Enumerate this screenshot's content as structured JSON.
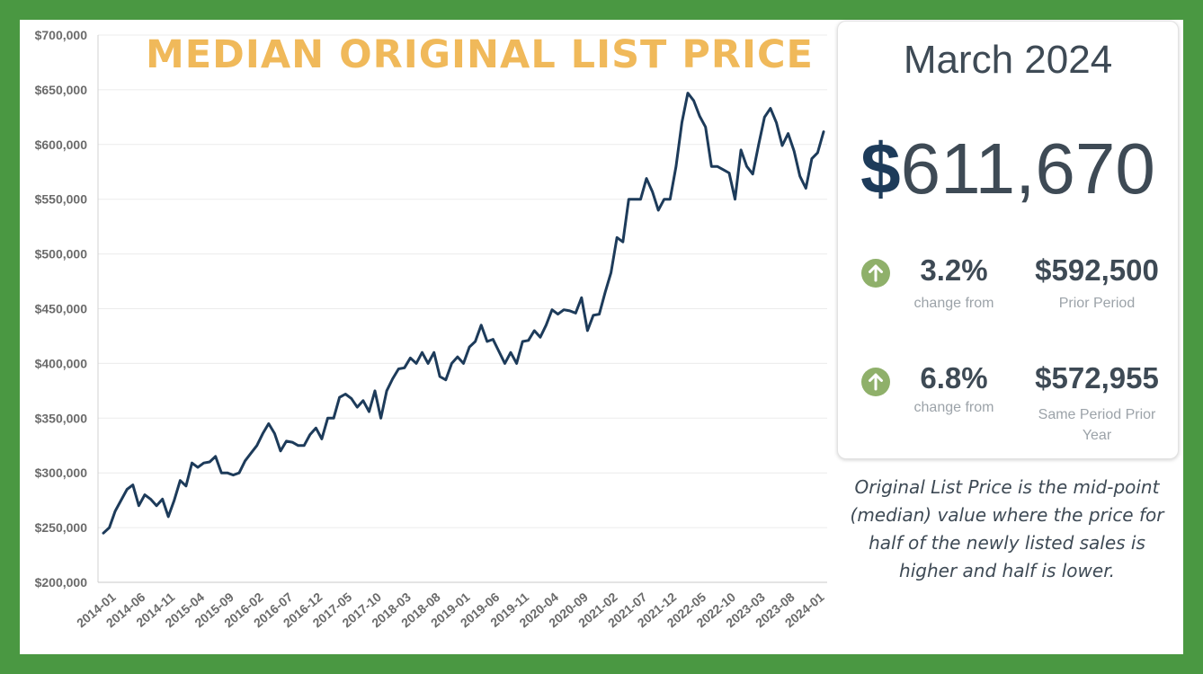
{
  "chart_data": {
    "type": "line",
    "title": "MEDIAN ORIGINAL LIST PRICE",
    "ylim": [
      200000,
      700000
    ],
    "y_ticks": [
      700000,
      650000,
      600000,
      550000,
      500000,
      450000,
      400000,
      350000,
      300000,
      250000,
      200000
    ],
    "y_tick_labels": [
      "$700,000",
      "$650,000",
      "$600,000",
      "$550,000",
      "$500,000",
      "$450,000",
      "$400,000",
      "$350,000",
      "$300,000",
      "$250,000",
      "$200,000"
    ],
    "x_start": "2014-01",
    "x_end": "2024-03",
    "x_tick_labels": [
      "2014-01",
      "2014-06",
      "2014-11",
      "2015-04",
      "2015-09",
      "2016-02",
      "2016-07",
      "2016-12",
      "2017-05",
      "2017-10",
      "2018-03",
      "2018-08",
      "2019-01",
      "2019-06",
      "2019-11",
      "2020-04",
      "2020-09",
      "2021-02",
      "2021-07",
      "2021-12",
      "2022-05",
      "2022-10",
      "2023-03",
      "2023-08",
      "2024-01"
    ],
    "grid": "horizontal",
    "line_color": "#1d3b5a",
    "series": [
      {
        "values": [
          245000,
          250000,
          265000,
          275000,
          285000,
          289000,
          270000,
          280000,
          276000,
          270000,
          276000,
          260000,
          275000,
          293000,
          288000,
          309000,
          305000,
          309000,
          310000,
          315000,
          300000,
          300000,
          298000,
          300000,
          311000,
          318000,
          325000,
          336000,
          345000,
          336000,
          320000,
          329000,
          328000,
          325000,
          325000,
          335000,
          341000,
          331000,
          350000,
          350000,
          369000,
          372000,
          368000,
          360000,
          366000,
          356000,
          375000,
          350000,
          375000,
          386000,
          395000,
          396000,
          405000,
          400000,
          410000,
          400000,
          410000,
          388000,
          385000,
          400000,
          406000,
          400000,
          415000,
          420000,
          435000,
          420000,
          422000,
          411000,
          400000,
          410000,
          400000,
          420000,
          421000,
          430000,
          424000,
          435000,
          449000,
          445000,
          449000,
          448000,
          446000,
          460000,
          430000,
          444000,
          445000,
          465000,
          483000,
          515000,
          511000,
          550000,
          550000,
          550000,
          569000,
          557000,
          540000,
          550000,
          550000,
          580000,
          620000,
          647000,
          640000,
          626000,
          616000,
          580000,
          580000,
          577000,
          574000,
          550000,
          595000,
          580000,
          573000,
          600000,
          625000,
          633000,
          620000,
          599000,
          610000,
          594000,
          571000,
          560000,
          587000,
          592500,
          611670
        ]
      }
    ]
  },
  "card": {
    "period": "March 2024",
    "dollar_sign": "$",
    "price": "611,670",
    "rows": [
      {
        "pct": "3.2%",
        "change_label": "change from",
        "value": "$592,500",
        "value_label": "Prior Period",
        "icon": "arrow-up-icon"
      },
      {
        "pct": "6.8%",
        "change_label": "change from",
        "value": "$572,955",
        "value_label": "Same Period Prior Year",
        "icon": "arrow-up-icon"
      }
    ],
    "arrow_color": "#8fb06a"
  },
  "note": "Original List Price is the mid-point (median) value where the price for half of the newly listed sales is higher and half is lower."
}
